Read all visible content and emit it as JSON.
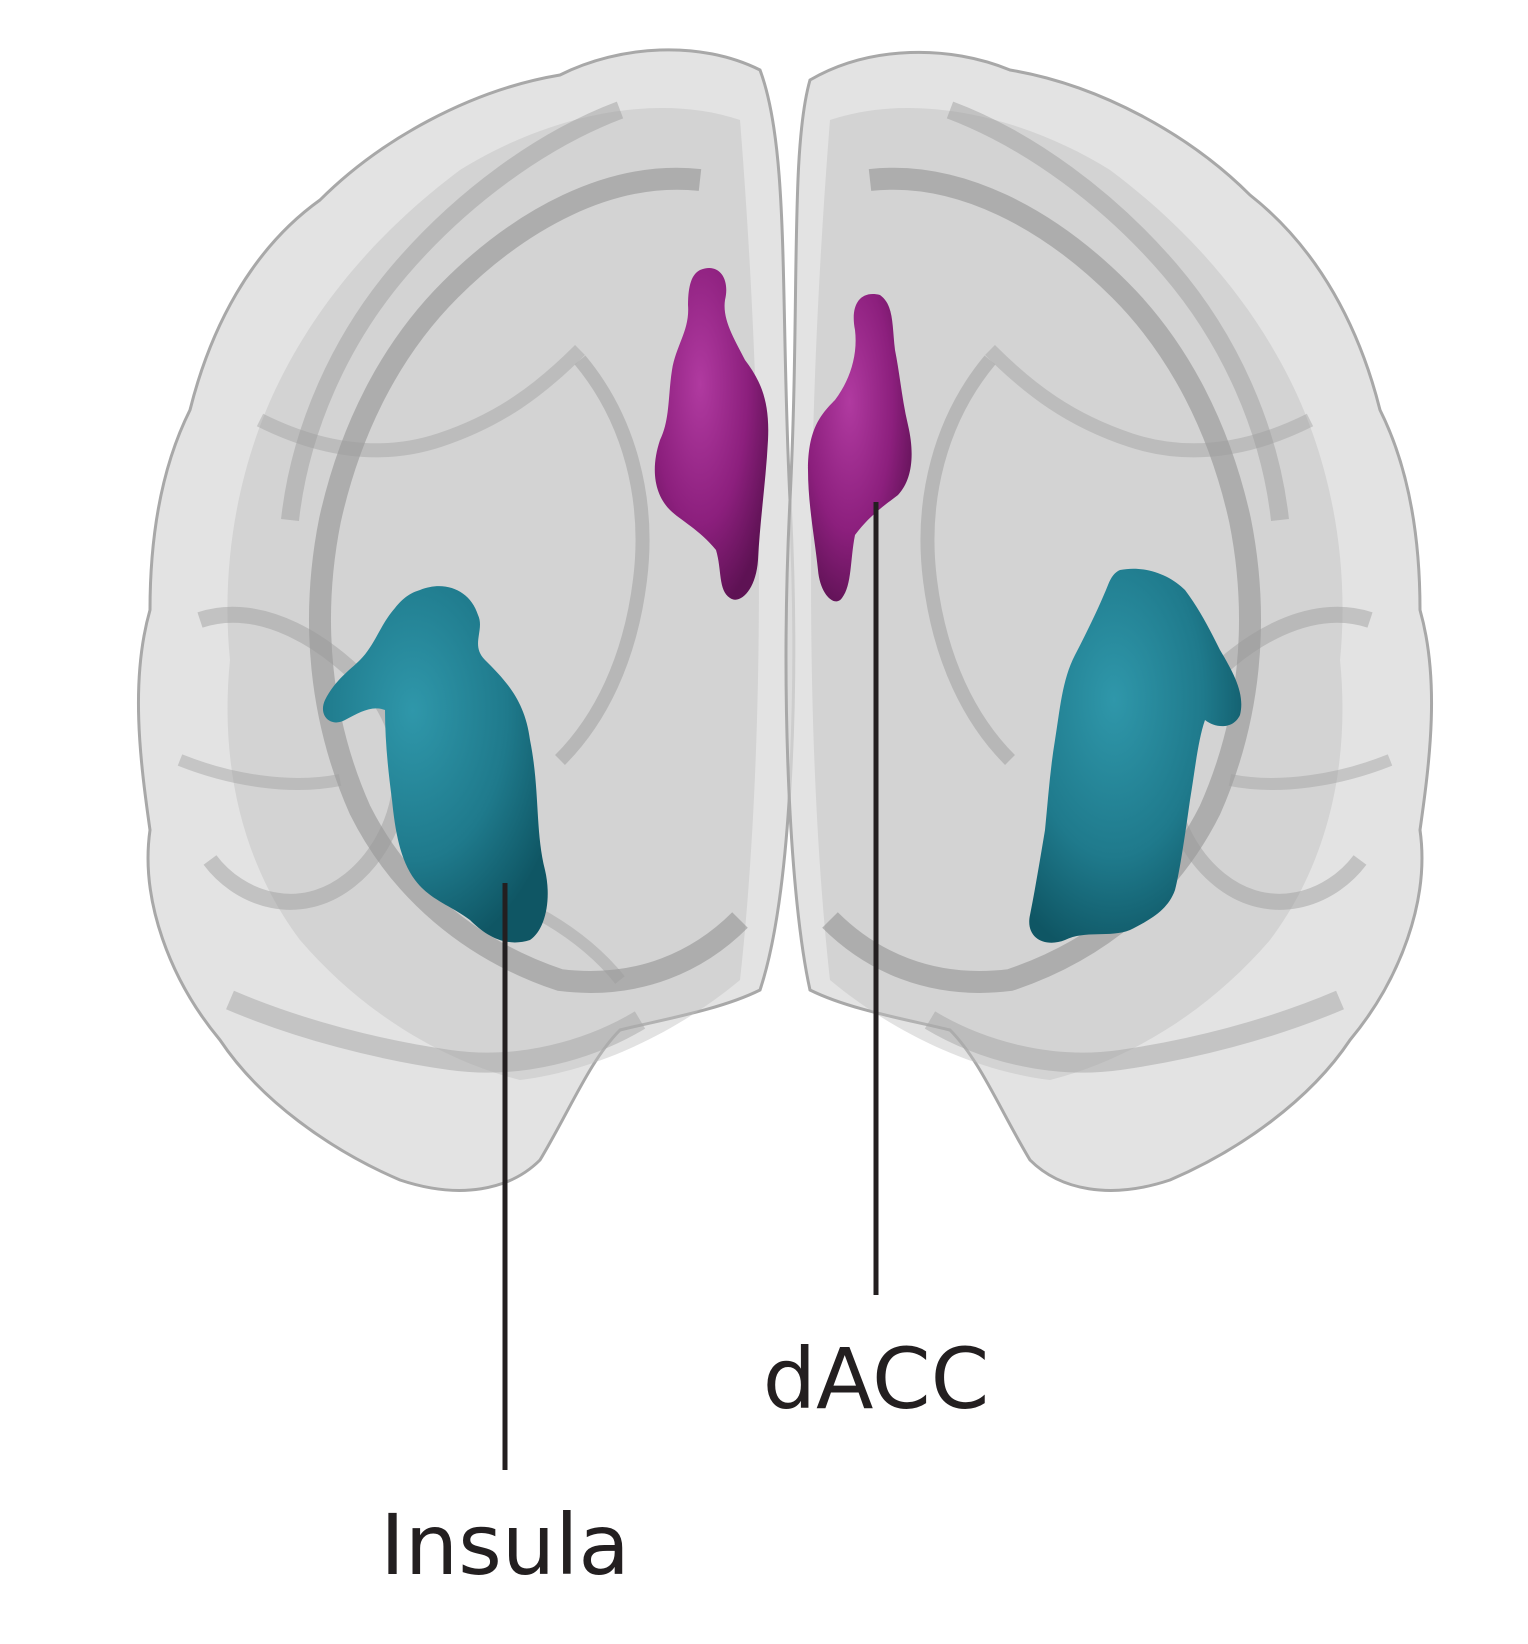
{
  "figure": {
    "labels": {
      "insula": "Insula",
      "dacc": "dACC"
    },
    "regions": [
      {
        "name": "insula",
        "color": "#1f7a8c"
      },
      {
        "name": "dacc",
        "color": "#8c1f7d"
      }
    ],
    "colors": {
      "brain_tissue": "#c8c8c8",
      "brain_outline": "#9a9a9a",
      "leader_line": "#231f20",
      "background": "#ffffff"
    }
  }
}
